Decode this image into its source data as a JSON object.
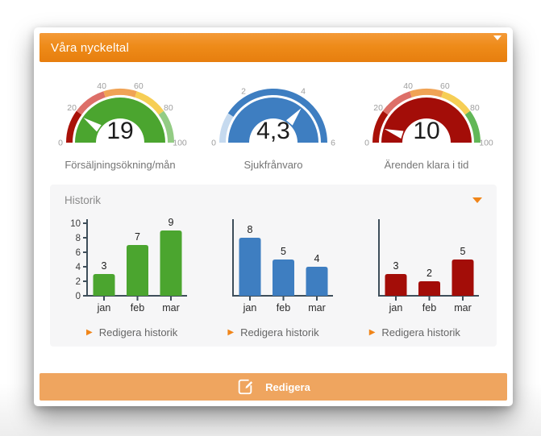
{
  "window": {
    "title": "Våra nyckeltal"
  },
  "colors": {
    "header_orange": "#EE8B19",
    "footer_orange": "#EFA55F",
    "accent_orange": "#F08519",
    "panel_gray": "#F6F6F7",
    "green": "#4BA52F",
    "blue": "#3E7EC1",
    "dark_red": "#A30D08"
  },
  "historik": {
    "label": "Historik",
    "edit_link_label": "Redigera historik"
  },
  "footer": {
    "edit_button_label": "Redigera"
  },
  "chart_data": [
    {
      "type": "gauge",
      "title": "Försäljningsökning/mån",
      "value": 19,
      "value_label": "19",
      "min": 0,
      "max": 100,
      "ticks": [
        0,
        20,
        40,
        60,
        80,
        100
      ],
      "fill_color": "#4BA52F",
      "bands": [
        {
          "to": 20,
          "color": "#A91108"
        },
        {
          "to": 40,
          "color": "#DD6F68"
        },
        {
          "to": 60,
          "color": "#F0A355"
        },
        {
          "to": 80,
          "color": "#F6CE55"
        },
        {
          "to": 100,
          "color": "#93CC84"
        }
      ]
    },
    {
      "type": "gauge",
      "title": "Sjukfrånvaro",
      "value": 4.3,
      "value_label": "4,3",
      "min": 0,
      "max": 6,
      "ticks": [
        0,
        2,
        4,
        6
      ],
      "fill_color": "#3E7EC1",
      "bands": [
        {
          "to": 1.1,
          "color": "#C6DAEF"
        },
        {
          "to": 6,
          "color": "#3E7EC1"
        }
      ]
    },
    {
      "type": "gauge",
      "title": "Ärenden klara i tid",
      "value": 10,
      "value_label": "10",
      "min": 0,
      "max": 100,
      "ticks": [
        0,
        20,
        40,
        60,
        80,
        100
      ],
      "fill_color": "#A30D08",
      "bands": [
        {
          "to": 20,
          "color": "#A91108"
        },
        {
          "to": 40,
          "color": "#DD6F68"
        },
        {
          "to": 60,
          "color": "#F0A355"
        },
        {
          "to": 80,
          "color": "#F6CE55"
        },
        {
          "to": 100,
          "color": "#62B757"
        }
      ]
    },
    {
      "type": "bar",
      "categories": [
        "jan",
        "feb",
        "mar"
      ],
      "values": [
        3,
        7,
        9
      ],
      "ylim": [
        0,
        10
      ],
      "y_ticks": [
        0,
        2,
        4,
        6,
        8,
        10
      ],
      "show_y_labels": true,
      "bar_color": "#4BA52F"
    },
    {
      "type": "bar",
      "categories": [
        "jan",
        "feb",
        "mar"
      ],
      "values": [
        8,
        5,
        4
      ],
      "ylim": [
        0,
        10
      ],
      "show_y_labels": false,
      "bar_color": "#3E7EC1"
    },
    {
      "type": "bar",
      "categories": [
        "jan",
        "feb",
        "mar"
      ],
      "values": [
        3,
        2,
        5
      ],
      "ylim": [
        0,
        10
      ],
      "show_y_labels": false,
      "bar_color": "#A30D08"
    }
  ]
}
